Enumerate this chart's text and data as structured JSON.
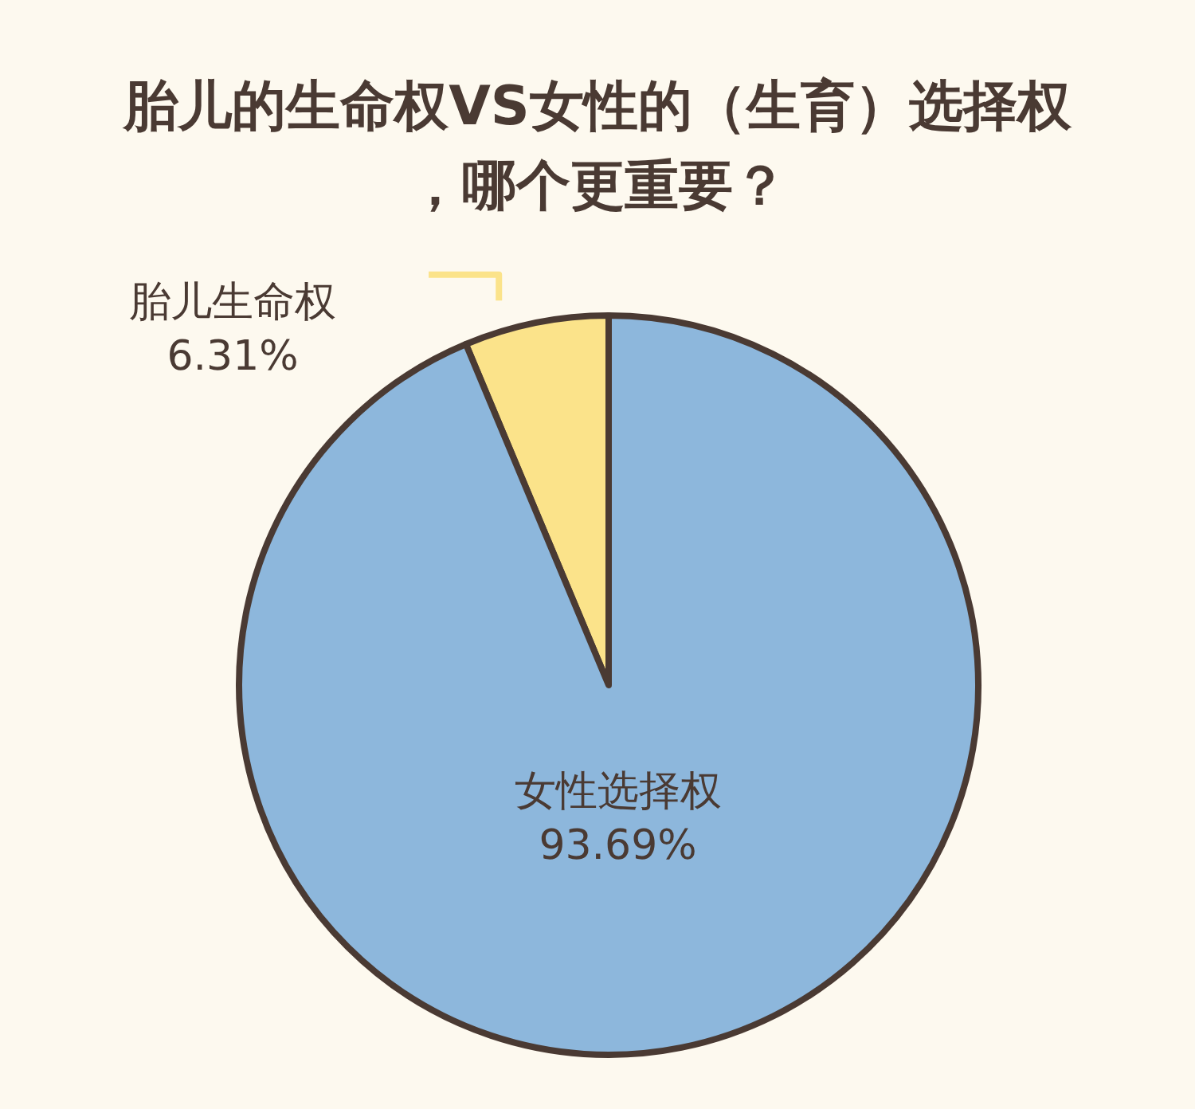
{
  "chart_data": {
    "type": "pie",
    "title": "胎儿的生命权VS女性的（生育）选择权，哪个更重要？",
    "categories": [
      "胎儿生命权",
      "女性选择权"
    ],
    "values": [
      6.31,
      93.69
    ],
    "colors": [
      "#fbe38a",
      "#8db7dc"
    ],
    "value_labels": [
      "6.31%",
      "93.69%"
    ]
  }
}
